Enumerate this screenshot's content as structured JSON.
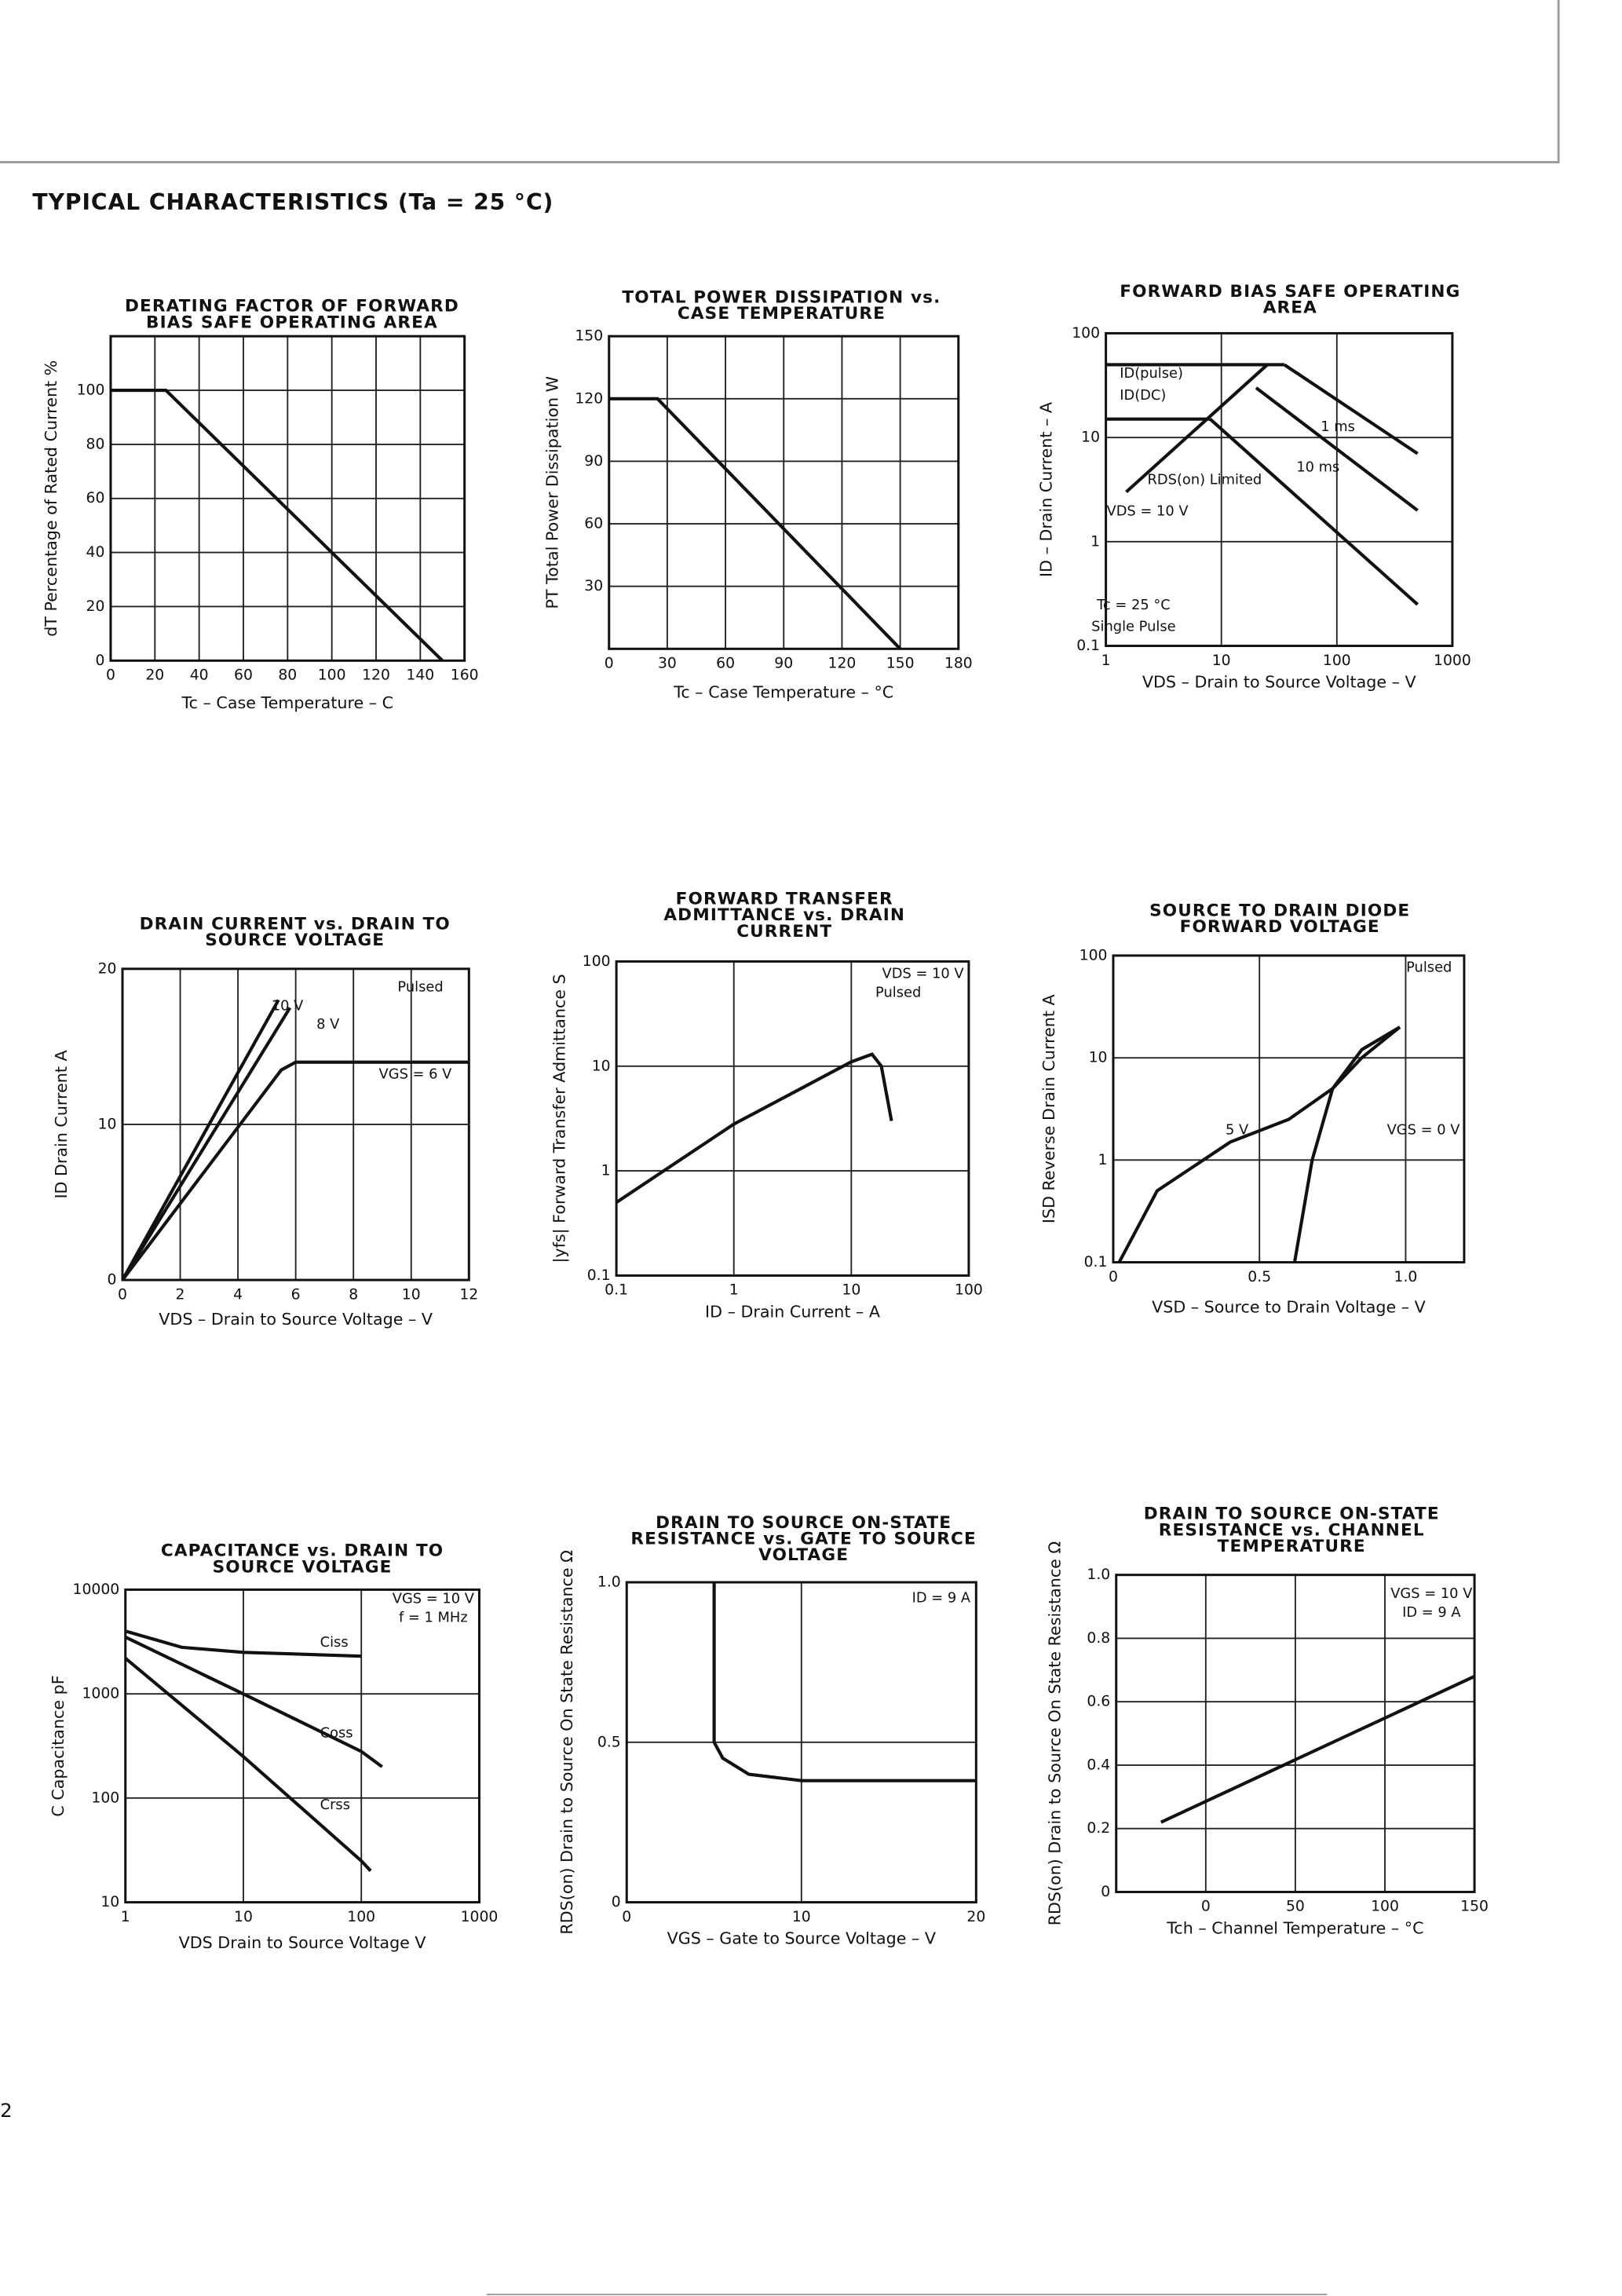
{
  "header": {
    "title": "TYPICAL CHARACTERISTICS (Ta = 25 °C)"
  },
  "page_number": "2",
  "chart_data": [
    {
      "type": "line",
      "title": [
        "DERATING FACTOR OF FORWARD",
        "BIAS SAFE OPERATING AREA"
      ],
      "xlabel": "Tc – Case Temperature – C",
      "ylabel": "dT  Percentage of Rated Current  %",
      "xlim": [
        0,
        160
      ],
      "ylim": [
        0,
        120
      ],
      "xticks": [
        0,
        20,
        40,
        60,
        80,
        100,
        120,
        140,
        160
      ],
      "yticks": [
        0,
        20,
        40,
        60,
        80,
        100
      ],
      "grid": true,
      "series": [
        {
          "color": "#111",
          "x": [
            0,
            25,
            150
          ],
          "values": [
            100,
            100,
            0
          ]
        }
      ]
    },
    {
      "type": "line",
      "title": [
        "TOTAL POWER DISSIPATION vs.",
        "CASE TEMPERATURE"
      ],
      "xlabel": "Tc – Case Temperature – °C",
      "ylabel": "PT  Total Power Dissipation  W",
      "xlim": [
        0,
        180
      ],
      "ylim": [
        0,
        150
      ],
      "xticks": [
        0,
        30,
        60,
        90,
        120,
        150,
        180
      ],
      "yticks": [
        30,
        60,
        90,
        120,
        150
      ],
      "grid": true,
      "series": [
        {
          "color": "#111",
          "x": [
            0,
            25,
            150
          ],
          "values": [
            120,
            120,
            0
          ]
        }
      ]
    },
    {
      "type": "line",
      "title": [
        "FORWARD BIAS SAFE OPERATING",
        "AREA"
      ],
      "xlabel": "VDS – Drain to Source Voltage – V",
      "ylabel": "ID – Drain Current – A",
      "xlim": [
        1,
        1000
      ],
      "ylim": [
        0.1,
        100
      ],
      "xlog": true,
      "ylog": true,
      "xticks": [
        1,
        10,
        100,
        1000
      ],
      "yticks": [
        0.1,
        1,
        10,
        100
      ],
      "grid": true,
      "series": [
        {
          "name": "ID(pulse)",
          "color": "#111",
          "x": [
            1,
            35
          ],
          "values": [
            50,
            50
          ]
        },
        {
          "name": "ID(DC)",
          "color": "#111",
          "x": [
            1,
            8
          ],
          "values": [
            15,
            15
          ]
        },
        {
          "name": "RDS(on) Limited",
          "color": "#111",
          "x": [
            1.5,
            25
          ],
          "values": [
            3,
            50
          ]
        },
        {
          "name": "1 ms",
          "color": "#111",
          "x": [
            35,
            500
          ],
          "values": [
            50,
            7
          ]
        },
        {
          "name": "10 ms",
          "color": "#111",
          "x": [
            20,
            500
          ],
          "values": [
            30,
            2
          ]
        },
        {
          "color": "#111",
          "x": [
            8,
            500
          ],
          "values": [
            15,
            0.25
          ]
        }
      ],
      "annotations": [
        "Tc = 25 °C",
        "Single Pulse",
        "VDS = 10 V"
      ]
    },
    {
      "type": "line",
      "title": [
        "DRAIN CURRENT vs. DRAIN TO",
        "SOURCE VOLTAGE"
      ],
      "xlabel": "VDS – Drain to Source Voltage – V",
      "ylabel": "ID  Drain Current  A",
      "xlim": [
        0,
        12
      ],
      "ylim": [
        0,
        20
      ],
      "xticks": [
        0,
        2,
        4,
        6,
        8,
        10,
        12
      ],
      "yticks": [
        0,
        10,
        20
      ],
      "grid": true,
      "series": [
        {
          "name": "10 V",
          "color": "#111",
          "x": [
            0,
            5.4
          ],
          "values": [
            0,
            18
          ]
        },
        {
          "name": "8 V",
          "color": "#111",
          "x": [
            0,
            5.8
          ],
          "values": [
            0,
            17.5
          ]
        },
        {
          "name": "VGS = 6 V",
          "color": "#111",
          "x": [
            0,
            5.5,
            6,
            12
          ],
          "values": [
            0,
            13.5,
            14,
            14
          ]
        }
      ],
      "annotations": [
        "Pulsed"
      ]
    },
    {
      "type": "line",
      "title": [
        "FORWARD TRANSFER",
        "ADMITTANCE vs. DRAIN",
        "CURRENT"
      ],
      "xlabel": "ID – Drain Current – A",
      "ylabel": "|yfs|  Forward Transfer Admittance  S",
      "xlim": [
        0.1,
        100
      ],
      "ylim": [
        0.1,
        100
      ],
      "xlog": true,
      "ylog": true,
      "xticks": [
        0.1,
        1,
        10,
        100
      ],
      "yticks": [
        0.1,
        1,
        10,
        100
      ],
      "grid": true,
      "series": [
        {
          "color": "#111",
          "x": [
            0.1,
            1,
            10,
            15,
            18,
            22
          ],
          "values": [
            0.5,
            2.8,
            11,
            13,
            10,
            3
          ]
        }
      ],
      "annotations": [
        "VDS = 10 V",
        "Pulsed"
      ]
    },
    {
      "type": "line",
      "title": [
        "SOURCE TO DRAIN DIODE",
        "FORWARD VOLTAGE"
      ],
      "xlabel": "VSD – Source to Drain Voltage – V",
      "ylabel": "ISD  Reverse Drain Current  A",
      "xlim": [
        0,
        1.2
      ],
      "ylim": [
        0.1,
        100
      ],
      "ylog": true,
      "xticks": [
        0,
        0.5,
        {
          "value": 1,
          "label": "1.0"
        }
      ],
      "yticks": [
        0.1,
        1,
        10,
        100
      ],
      "grid": true,
      "series": [
        {
          "name": "5 V",
          "color": "#111",
          "x": [
            0.02,
            0.15,
            0.4,
            0.6,
            0.75,
            0.85,
            0.98
          ],
          "values": [
            0.1,
            0.5,
            1.5,
            2.5,
            5,
            10,
            20
          ]
        },
        {
          "name": "VGS = 0 V",
          "color": "#111",
          "x": [
            0.62,
            0.68,
            0.75,
            0.85,
            0.98
          ],
          "values": [
            0.1,
            1,
            5,
            12,
            20
          ]
        }
      ],
      "annotations": [
        "Pulsed"
      ]
    },
    {
      "type": "line",
      "title": [
        "CAPACITANCE vs. DRAIN TO",
        "SOURCE VOLTAGE"
      ],
      "xlabel": "VDS  Drain to Source Voltage  V",
      "ylabel": "C  Capacitance  pF",
      "xlim": [
        1,
        1000
      ],
      "ylim": [
        10,
        10000
      ],
      "xlog": true,
      "ylog": true,
      "xticks": [
        1,
        10,
        100,
        1000
      ],
      "yticks": [
        10,
        100,
        1000,
        10000
      ],
      "grid": true,
      "series": [
        {
          "name": "Ciss",
          "color": "#111",
          "x": [
            1,
            3,
            10,
            100
          ],
          "values": [
            4000,
            2800,
            2500,
            2300
          ]
        },
        {
          "name": "Coss",
          "color": "#111",
          "x": [
            1,
            10,
            100,
            150
          ],
          "values": [
            3500,
            1000,
            280,
            200
          ]
        },
        {
          "name": "Crss",
          "color": "#111",
          "x": [
            1,
            10,
            100,
            120
          ],
          "values": [
            2200,
            250,
            25,
            20
          ]
        }
      ],
      "annotations": [
        "VGS = 10 V",
        "f = 1 MHz"
      ]
    },
    {
      "type": "line",
      "title": [
        "DRAIN TO SOURCE ON-STATE",
        "RESISTANCE vs. GATE TO SOURCE",
        "VOLTAGE"
      ],
      "xlabel": "VGS – Gate to Source Voltage – V",
      "ylabel": "RDS(on)  Drain to Source On State Resistance  Ω",
      "xlim": [
        0,
        20
      ],
      "ylim": [
        0,
        1
      ],
      "xticks": [
        0,
        10,
        20
      ],
      "yticks": [
        0,
        0.5,
        {
          "value": 1,
          "label": "1.0"
        }
      ],
      "grid": true,
      "series": [
        {
          "color": "#111",
          "x": [
            5,
            5,
            5.5,
            7,
            10,
            20
          ],
          "values": [
            1,
            0.5,
            0.45,
            0.4,
            0.38,
            0.38
          ]
        }
      ],
      "annotations": [
        "ID = 9 A"
      ]
    },
    {
      "type": "line",
      "title": [
        "DRAIN TO SOURCE ON-STATE",
        "RESISTANCE vs. CHANNEL",
        "TEMPERATURE"
      ],
      "xlabel": "Tch – Channel Temperature – °C",
      "ylabel": "RDS(on)  Drain to Source On State Resistance  Ω",
      "xlim": [
        -50,
        150
      ],
      "ylim": [
        0,
        1
      ],
      "xticks": [
        0,
        50,
        100,
        150
      ],
      "yticks": [
        0,
        0.2,
        0.4,
        0.6,
        0.8,
        {
          "value": 1,
          "label": "1.0"
        }
      ],
      "grid": true,
      "series": [
        {
          "color": "#111",
          "x": [
            -25,
            150
          ],
          "values": [
            0.22,
            0.68
          ]
        }
      ],
      "annotations": [
        "VGS = 10 V",
        "ID = 9 A"
      ]
    }
  ]
}
